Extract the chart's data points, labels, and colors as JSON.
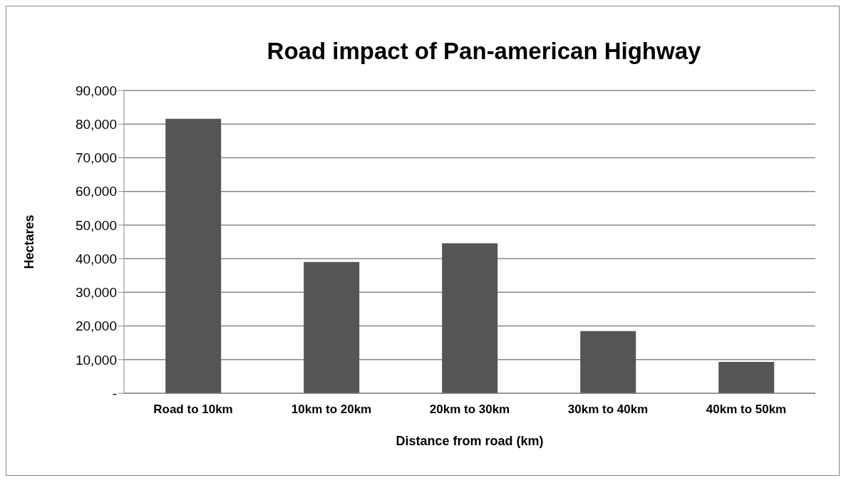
{
  "chart_data": {
    "type": "bar",
    "title": "Road impact of Pan-american Highway",
    "xlabel": "Distance from road (km)",
    "ylabel": "Hectares",
    "categories": [
      "Road to 10km",
      "10km to 20km",
      "20km to 30km",
      "30km to 40km",
      "40km to 50km"
    ],
    "values": [
      81600,
      39000,
      44600,
      18500,
      9300
    ],
    "color": "#555555",
    "ylim": [
      0,
      90000
    ],
    "yticks": [
      {
        "value": 0,
        "label": "-"
      },
      {
        "value": 10000,
        "label": "10,000"
      },
      {
        "value": 20000,
        "label": "20,000"
      },
      {
        "value": 30000,
        "label": "30,000"
      },
      {
        "value": 40000,
        "label": "40,000"
      },
      {
        "value": 50000,
        "label": "50,000"
      },
      {
        "value": 60000,
        "label": "60,000"
      },
      {
        "value": 70000,
        "label": "70,000"
      },
      {
        "value": 80000,
        "label": "80,000"
      },
      {
        "value": 90000,
        "label": "90,000"
      }
    ],
    "grid": "y"
  }
}
